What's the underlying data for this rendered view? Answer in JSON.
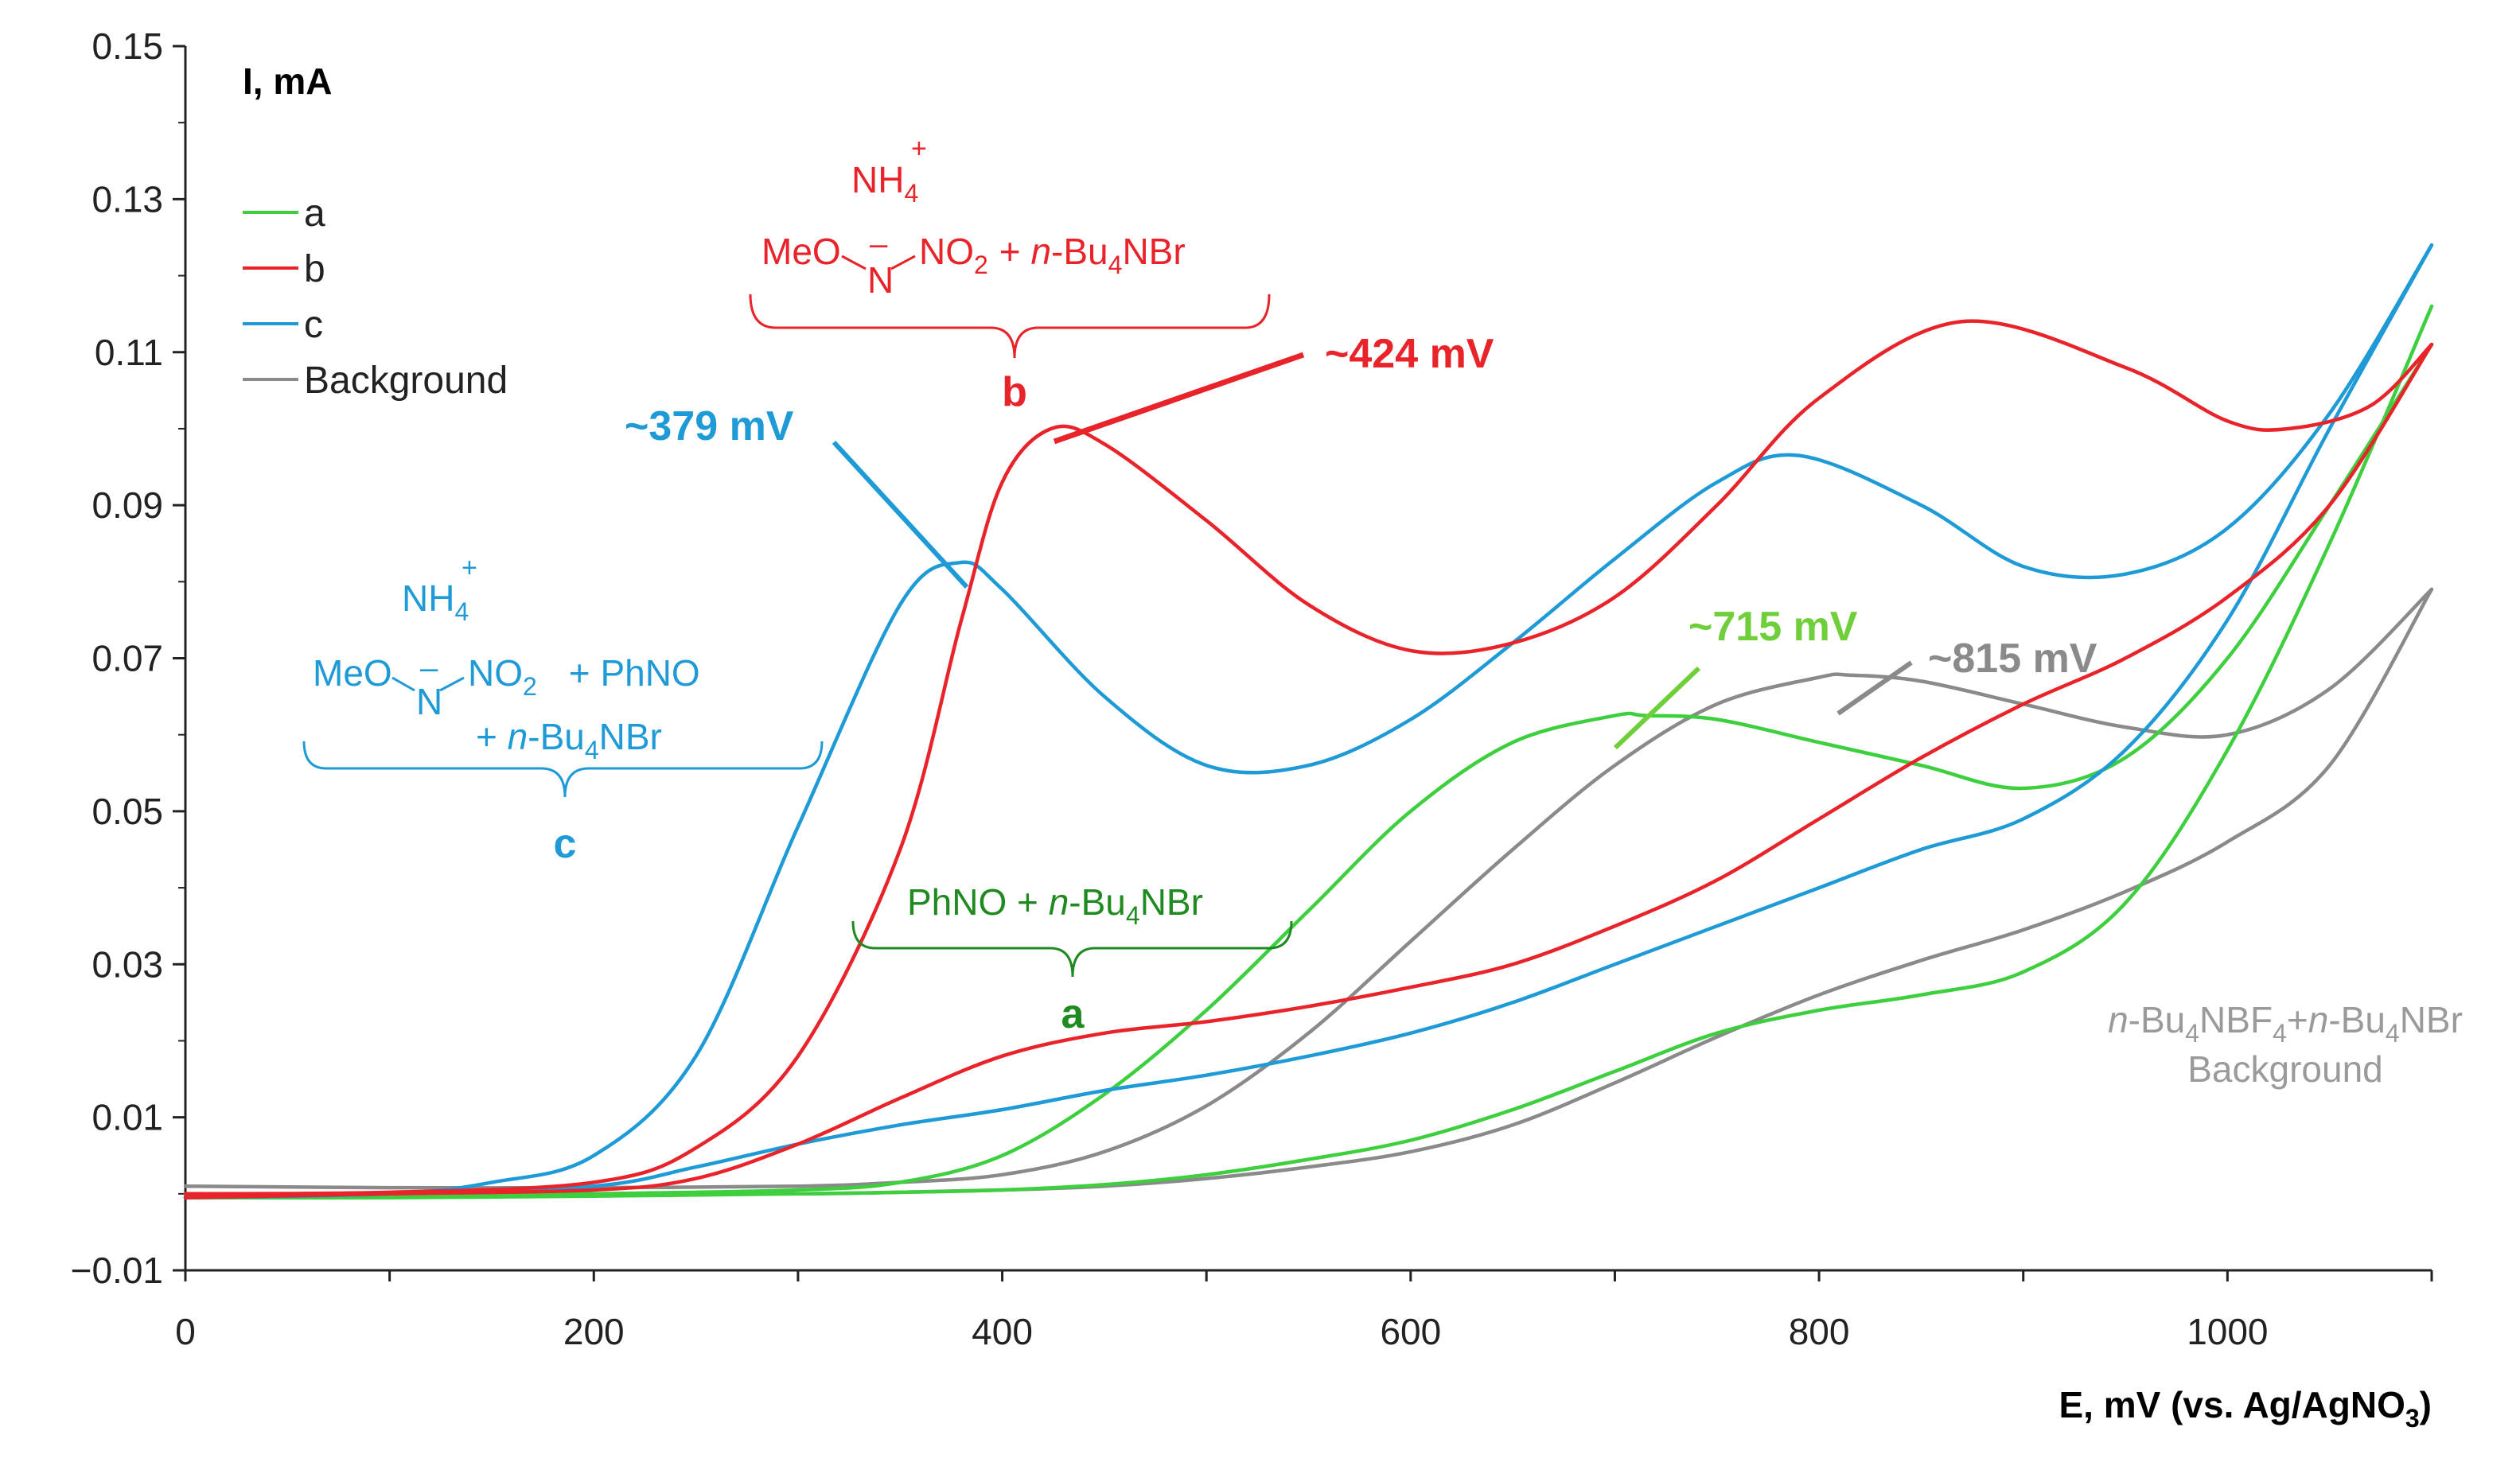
{
  "chart_data": {
    "type": "line",
    "title": "",
    "xlabel": "E, mV (vs. Ag/AgNO3)",
    "ylabel": "I, mA",
    "xlim": [
      0,
      1100
    ],
    "ylim": [
      -0.01,
      0.15
    ],
    "x_ticks": [
      "0",
      "200",
      "400",
      "600",
      "800",
      "1000"
    ],
    "y_ticks": [
      "0.15",
      "0.13",
      "0.11",
      "0.09",
      "0.07",
      "0.05",
      "0.03",
      "0.01",
      "−0.01"
    ],
    "legend": {
      "position": "top-left",
      "entries": [
        "a",
        "b",
        "c",
        "Background"
      ]
    },
    "series": [
      {
        "name": "a",
        "color": "#3ecf3e",
        "forward": {
          "x": [
            0,
            100,
            200,
            300,
            350,
            400,
            450,
            500,
            550,
            600,
            650,
            700,
            750,
            800,
            850,
            900,
            950,
            1000,
            1050,
            1100
          ],
          "y": [
            -0.0005,
            -0.0005,
            -0.0003,
            0.0,
            0.0002,
            0.0005,
            0.0012,
            0.0025,
            0.0045,
            0.007,
            0.011,
            0.016,
            0.021,
            0.024,
            0.026,
            0.029,
            0.038,
            0.058,
            0.085,
            0.116
          ]
        },
        "reverse": {
          "x": [
            1100,
            1050,
            1000,
            950,
            900,
            850,
            800,
            750,
            715,
            700,
            650,
            600,
            550,
            500,
            450,
            400,
            350,
            300,
            200,
            100,
            0
          ],
          "y": [
            0.111,
            0.09,
            0.07,
            0.057,
            0.053,
            0.056,
            0.059,
            0.062,
            0.0625,
            0.0625,
            0.059,
            0.05,
            0.037,
            0.024,
            0.013,
            0.005,
            0.0015,
            0.0005,
            0.0,
            -0.0003,
            -0.0005
          ]
        }
      },
      {
        "name": "b",
        "color": "#e8242a",
        "forward": {
          "x": [
            0,
            100,
            200,
            250,
            300,
            350,
            380,
            400,
            424,
            450,
            500,
            550,
            600,
            650,
            700,
            750,
            800,
            870,
            950,
            1000,
            1030,
            1070,
            1100
          ],
          "y": [
            0.0,
            0.0002,
            0.0015,
            0.006,
            0.018,
            0.045,
            0.075,
            0.093,
            0.1,
            0.098,
            0.088,
            0.077,
            0.071,
            0.072,
            0.078,
            0.09,
            0.104,
            0.114,
            0.108,
            0.101,
            0.1,
            0.103,
            0.111
          ]
        },
        "reverse": {
          "x": [
            1100,
            1050,
            1000,
            950,
            900,
            850,
            800,
            750,
            700,
            650,
            600,
            550,
            500,
            450,
            400,
            350,
            300,
            250,
            200,
            100,
            0
          ],
          "y": [
            0.111,
            0.09,
            0.078,
            0.07,
            0.064,
            0.057,
            0.049,
            0.041,
            0.035,
            0.03,
            0.027,
            0.0245,
            0.0225,
            0.021,
            0.018,
            0.0125,
            0.0065,
            0.002,
            0.0005,
            0.0,
            -0.0005
          ]
        }
      },
      {
        "name": "c",
        "color": "#1e9ad6",
        "forward": {
          "x": [
            0,
            100,
            150,
            200,
            250,
            300,
            350,
            379,
            400,
            450,
            500,
            550,
            600,
            650,
            700,
            750,
            790,
            850,
            900,
            950,
            1000,
            1050,
            1100
          ],
          "y": [
            -0.0005,
            0.0,
            0.0015,
            0.005,
            0.018,
            0.048,
            0.077,
            0.0825,
            0.079,
            0.065,
            0.056,
            0.056,
            0.062,
            0.072,
            0.083,
            0.093,
            0.0965,
            0.09,
            0.082,
            0.081,
            0.087,
            0.102,
            0.124
          ]
        },
        "reverse": {
          "x": [
            1100,
            1050,
            1000,
            950,
            900,
            850,
            800,
            750,
            700,
            650,
            600,
            550,
            500,
            450,
            400,
            350,
            300,
            250,
            200,
            100,
            0
          ],
          "y": [
            0.124,
            0.1,
            0.075,
            0.058,
            0.049,
            0.045,
            0.04,
            0.035,
            0.03,
            0.025,
            0.021,
            0.018,
            0.0155,
            0.0135,
            0.011,
            0.009,
            0.0065,
            0.0035,
            0.001,
            0.0,
            -0.0003
          ]
        }
      },
      {
        "name": "Background",
        "color": "#8a8a8a",
        "forward": {
          "x": [
            0,
            100,
            200,
            300,
            350,
            400,
            450,
            500,
            550,
            600,
            650,
            700,
            750,
            800,
            850,
            900,
            950,
            1000,
            1050,
            1100
          ],
          "y": [
            0.0,
            0.0,
            0.0,
            0.0,
            0.0002,
            0.0005,
            0.001,
            0.002,
            0.0035,
            0.0055,
            0.009,
            0.0145,
            0.0205,
            0.026,
            0.0305,
            0.0345,
            0.0395,
            0.046,
            0.056,
            0.079
          ]
        },
        "reverse": {
          "x": [
            1100,
            1050,
            1000,
            950,
            900,
            850,
            815,
            800,
            750,
            700,
            650,
            600,
            550,
            500,
            450,
            400,
            350,
            300,
            200,
            100,
            0
          ],
          "y": [
            0.079,
            0.066,
            0.06,
            0.061,
            0.064,
            0.067,
            0.0678,
            0.0675,
            0.064,
            0.056,
            0.045,
            0.033,
            0.021,
            0.0115,
            0.0055,
            0.0025,
            0.0015,
            0.001,
            0.0008,
            0.0008,
            0.001
          ]
        }
      }
    ],
    "annotations": [
      {
        "id": "peak-b",
        "text": "~424 mV",
        "color": "#e8242a"
      },
      {
        "id": "peak-c",
        "text": "~379 mV",
        "color": "#1e9ad6"
      },
      {
        "id": "peak-a",
        "text": "~715 mV",
        "color": "#6fcf3a"
      },
      {
        "id": "peak-bg",
        "text": "~815 mV",
        "color": "#8a8a8a"
      }
    ],
    "labels": {
      "b": {
        "line1_species": "NH",
        "line1_sub": "4",
        "line1_sup": "+",
        "line2_a": "MeO",
        "line2_minus": "–",
        "line2_n": "N",
        "line2_b": "NO",
        "line2_sub": "2",
        "line2_c": "+ ",
        "line2_italic": "n",
        "line2_d": "-Bu",
        "line2_sub2": "4",
        "line2_e": "NBr",
        "tag": "b",
        "color": "#e8242a"
      },
      "c": {
        "line1_species": "NH",
        "line1_sub": "4",
        "line1_sup": "+",
        "line2_a": "MeO",
        "line2_minus": "–",
        "line2_n": "N",
        "line2_b": "NO",
        "line2_sub": "2",
        "line2_c": "+ PhNO",
        "line3_a": "+ ",
        "line3_italic": "n",
        "line3_b": "-Bu",
        "line3_sub": "4",
        "line3_c": "NBr",
        "tag": "c",
        "color": "#1e9ad6"
      },
      "a": {
        "text_a": "PhNO + ",
        "italic": "n",
        "text_b": "-Bu",
        "sub": "4",
        "text_c": "NBr",
        "tag": "a",
        "color": "#1f8a1f"
      },
      "bg": {
        "italic1": "n",
        "text_a": "-Bu",
        "sub1": "4",
        "text_b": "NBF",
        "sub2": "4",
        "text_c": "+",
        "italic2": "n",
        "text_d": "-Bu",
        "sub3": "4",
        "text_e": "NBr",
        "line2": "Background",
        "color": "#9a9a9a"
      }
    },
    "xlabel_parts": {
      "a": "E, mV (vs. Ag/AgNO",
      "sub": "3",
      "b": ")"
    }
  }
}
